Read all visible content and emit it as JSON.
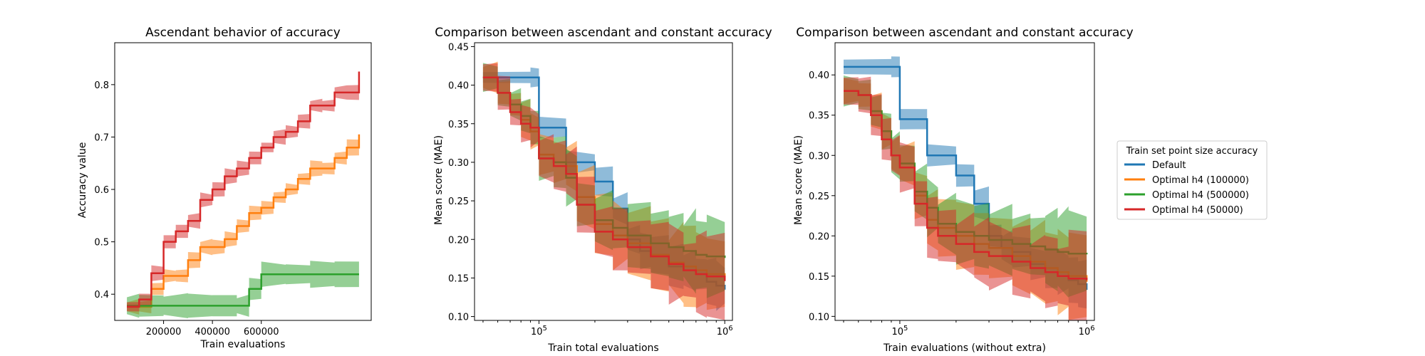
{
  "colors": {
    "blue": "#1f77b4",
    "orange": "#ff7f0e",
    "green": "#2ca02c",
    "red": "#d62728"
  },
  "legend": {
    "title": "Train set point size accuracy",
    "placement": "center-right",
    "entries": [
      "Default",
      "Optimal h4 (100000)",
      "Optimal h4 (500000)",
      "Optimal h4 (50000)"
    ]
  },
  "chart_data": [
    {
      "type": "line",
      "title": "Ascendant behavior of accuracy",
      "xlabel": "Train evaluations",
      "ylabel": "Accuracy value",
      "xlim": [
        0,
        1050000
      ],
      "ylim": [
        0.35,
        0.88
      ],
      "xticks": [
        200000,
        400000,
        600000
      ],
      "xtick_labels": [
        "200000",
        "400000",
        "600000"
      ],
      "yticks": [
        0.4,
        0.5,
        0.6,
        0.7,
        0.8
      ],
      "ytick_labels": [
        "0.4",
        "0.5",
        "0.6",
        "0.7",
        "0.8"
      ],
      "grid": false,
      "series": [
        {
          "name": "Optimal h4 (100000)",
          "color": "#ff7f0e",
          "x": [
            50000,
            100000,
            150000,
            200000,
            250000,
            300000,
            350000,
            400000,
            450000,
            500000,
            550000,
            600000,
            650000,
            700000,
            750000,
            800000,
            850000,
            900000,
            950000,
            1000000
          ],
          "y": [
            0.376,
            0.376,
            0.41,
            0.435,
            0.435,
            0.465,
            0.49,
            0.49,
            0.505,
            0.53,
            0.555,
            0.565,
            0.585,
            0.6,
            0.62,
            0.64,
            0.64,
            0.66,
            0.68,
            0.705
          ],
          "band": 0.012
        },
        {
          "name": "Optimal h4 (500000)",
          "color": "#2ca02c",
          "x": [
            50000,
            100000,
            200000,
            300000,
            400000,
            500000,
            550000,
            600000,
            700000,
            800000,
            900000,
            1000000
          ],
          "y": [
            0.378,
            0.378,
            0.378,
            0.378,
            0.378,
            0.378,
            0.41,
            0.438,
            0.438,
            0.438,
            0.438,
            0.438
          ],
          "band": 0.02
        },
        {
          "name": "Optimal h4 (50000)",
          "color": "#d62728",
          "x": [
            50000,
            100000,
            150000,
            200000,
            250000,
            300000,
            350000,
            400000,
            450000,
            500000,
            550000,
            600000,
            650000,
            700000,
            750000,
            800000,
            850000,
            900000,
            950000,
            1000000
          ],
          "y": [
            0.376,
            0.39,
            0.44,
            0.5,
            0.52,
            0.54,
            0.58,
            0.6,
            0.625,
            0.64,
            0.66,
            0.68,
            0.7,
            0.71,
            0.73,
            0.76,
            0.76,
            0.785,
            0.785,
            0.825
          ],
          "band": 0.012
        }
      ]
    },
    {
      "type": "line",
      "title": "Comparison between ascendant and constant accuracy",
      "xlabel": "Train total evaluations",
      "ylabel": "Mean score (MAE)",
      "xscale": "log",
      "xlim": [
        45000,
        1100000
      ],
      "ylim": [
        0.095,
        0.455
      ],
      "xticks": [
        100000,
        1000000
      ],
      "xtick_labels": [
        "10^5",
        "10^6"
      ],
      "yticks": [
        0.1,
        0.15,
        0.2,
        0.25,
        0.3,
        0.35,
        0.4,
        0.45
      ],
      "ytick_labels": [
        "0.10",
        "0.15",
        "0.20",
        "0.25",
        "0.30",
        "0.35",
        "0.40",
        "0.45"
      ],
      "grid": false,
      "series": [
        {
          "name": "Default",
          "color": "#1f77b4",
          "x": [
            50000,
            90000,
            100000,
            140000,
            200000,
            250000,
            300000,
            350000,
            400000,
            500000,
            600000,
            700000,
            800000,
            900000,
            1000000
          ],
          "y": [
            0.41,
            0.41,
            0.345,
            0.3,
            0.275,
            0.24,
            0.2,
            0.185,
            0.18,
            0.165,
            0.16,
            0.155,
            0.145,
            0.14,
            0.135
          ],
          "band": 0.015
        },
        {
          "name": "Optimal h4 (100000)",
          "color": "#ff7f0e",
          "x": [
            50000,
            60000,
            70000,
            80000,
            90000,
            100000,
            120000,
            140000,
            160000,
            200000,
            250000,
            300000,
            400000,
            500000,
            600000,
            700000,
            800000,
            1000000
          ],
          "y": [
            0.41,
            0.39,
            0.375,
            0.355,
            0.34,
            0.31,
            0.3,
            0.295,
            0.255,
            0.22,
            0.205,
            0.195,
            0.18,
            0.17,
            0.165,
            0.16,
            0.155,
            0.148
          ],
          "band": 0.025
        },
        {
          "name": "Optimal h4 (500000)",
          "color": "#2ca02c",
          "x": [
            50000,
            60000,
            70000,
            80000,
            90000,
            100000,
            120000,
            140000,
            160000,
            200000,
            250000,
            300000,
            400000,
            500000,
            600000,
            700000,
            800000,
            1000000
          ],
          "y": [
            0.41,
            0.39,
            0.375,
            0.36,
            0.345,
            0.305,
            0.3,
            0.28,
            0.245,
            0.225,
            0.215,
            0.205,
            0.195,
            0.19,
            0.185,
            0.18,
            0.178,
            0.176
          ],
          "band": 0.025
        },
        {
          "name": "Optimal h4 (50000)",
          "color": "#d62728",
          "x": [
            50000,
            60000,
            70000,
            80000,
            90000,
            100000,
            120000,
            140000,
            160000,
            200000,
            250000,
            300000,
            400000,
            500000,
            600000,
            700000,
            800000,
            1000000
          ],
          "y": [
            0.41,
            0.39,
            0.365,
            0.35,
            0.345,
            0.305,
            0.295,
            0.285,
            0.245,
            0.21,
            0.2,
            0.19,
            0.178,
            0.168,
            0.16,
            0.155,
            0.152,
            0.146
          ],
          "band": 0.025
        }
      ]
    },
    {
      "type": "line",
      "title": "Comparison between ascendant and constant accuracy",
      "xlabel": "Train evaluations (without extra)",
      "ylabel": "Mean score (MAE)",
      "xscale": "log",
      "xlim": [
        45000,
        1100000
      ],
      "ylim": [
        0.095,
        0.44
      ],
      "xticks": [
        100000,
        1000000
      ],
      "xtick_labels": [
        "10^5",
        "10^6"
      ],
      "yticks": [
        0.1,
        0.15,
        0.2,
        0.25,
        0.3,
        0.35,
        0.4
      ],
      "ytick_labels": [
        "0.10",
        "0.15",
        "0.20",
        "0.25",
        "0.30",
        "0.35",
        "0.40"
      ],
      "grid": false,
      "series": [
        {
          "name": "Default",
          "color": "#1f77b4",
          "x": [
            50000,
            90000,
            100000,
            140000,
            200000,
            250000,
            300000,
            350000,
            400000,
            500000,
            600000,
            700000,
            800000,
            900000,
            1000000
          ],
          "y": [
            0.41,
            0.41,
            0.345,
            0.3,
            0.275,
            0.24,
            0.2,
            0.185,
            0.18,
            0.165,
            0.16,
            0.155,
            0.145,
            0.14,
            0.133
          ],
          "band": 0.015
        },
        {
          "name": "Optimal h4 (100000)",
          "color": "#ff7f0e",
          "x": [
            50000,
            60000,
            70000,
            80000,
            90000,
            100000,
            120000,
            140000,
            160000,
            200000,
            250000,
            300000,
            400000,
            500000,
            600000,
            700000,
            800000,
            1000000
          ],
          "y": [
            0.38,
            0.375,
            0.355,
            0.33,
            0.3,
            0.29,
            0.25,
            0.22,
            0.21,
            0.2,
            0.19,
            0.185,
            0.175,
            0.168,
            0.16,
            0.155,
            0.15,
            0.143
          ],
          "band": 0.025
        },
        {
          "name": "Optimal h4 (500000)",
          "color": "#2ca02c",
          "x": [
            50000,
            60000,
            70000,
            80000,
            90000,
            100000,
            120000,
            140000,
            160000,
            200000,
            250000,
            300000,
            400000,
            500000,
            600000,
            700000,
            800000,
            1000000
          ],
          "y": [
            0.38,
            0.375,
            0.355,
            0.33,
            0.3,
            0.29,
            0.255,
            0.235,
            0.215,
            0.205,
            0.2,
            0.195,
            0.19,
            0.187,
            0.183,
            0.18,
            0.178,
            0.177
          ],
          "band": 0.025
        },
        {
          "name": "Optimal h4 (50000)",
          "color": "#d62728",
          "x": [
            50000,
            60000,
            70000,
            80000,
            90000,
            100000,
            120000,
            140000,
            160000,
            200000,
            250000,
            300000,
            400000,
            500000,
            600000,
            700000,
            800000,
            1000000
          ],
          "y": [
            0.38,
            0.375,
            0.35,
            0.32,
            0.3,
            0.285,
            0.24,
            0.21,
            0.2,
            0.19,
            0.18,
            0.175,
            0.168,
            0.16,
            0.155,
            0.15,
            0.147,
            0.145
          ],
          "band": 0.025
        }
      ]
    }
  ]
}
